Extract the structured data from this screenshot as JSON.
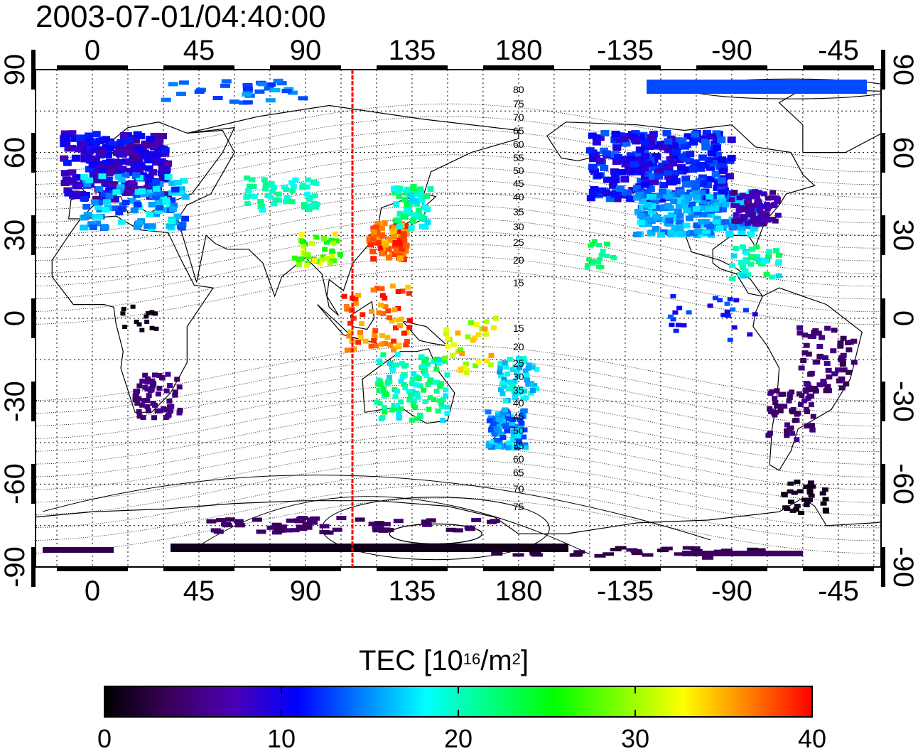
{
  "title": "2003-07-01/04:40:00",
  "map": {
    "lon_ticks": [
      "0",
      "45",
      "90",
      "135",
      "180",
      "-135",
      "-90",
      "-45"
    ],
    "lat_ticks": [
      "90",
      "60",
      "30",
      "0",
      "-30",
      "-60",
      "-90"
    ],
    "magnetic_north_labels": [
      "80",
      "75",
      "70",
      "65",
      "60",
      "55",
      "50",
      "45",
      "40",
      "35",
      "30",
      "25",
      "20",
      "15"
    ],
    "magnetic_south_labels": [
      "15",
      "20",
      "25",
      "30",
      "35",
      "40",
      "45",
      "50",
      "55",
      "60",
      "65",
      "70",
      "75"
    ],
    "meridian_line_color": "#ff0000",
    "colors": {
      "coastline": "#000000",
      "grid": "#000000",
      "contour": "#000000"
    }
  },
  "colorbar": {
    "label_main": "TEC  [10",
    "label_exp1": "16",
    "label_unit": "/m",
    "label_exp2": "2",
    "label_end": "]",
    "ticks": [
      "0",
      "10",
      "20",
      "30",
      "40"
    ],
    "range": [
      0,
      40
    ],
    "colormap": [
      "#000000",
      "#3a005a",
      "#4b00b4",
      "#0000ff",
      "#0080ff",
      "#00ffff",
      "#00ff80",
      "#00ff00",
      "#80ff00",
      "#ffff00",
      "#ff8000",
      "#ff0000"
    ]
  }
}
